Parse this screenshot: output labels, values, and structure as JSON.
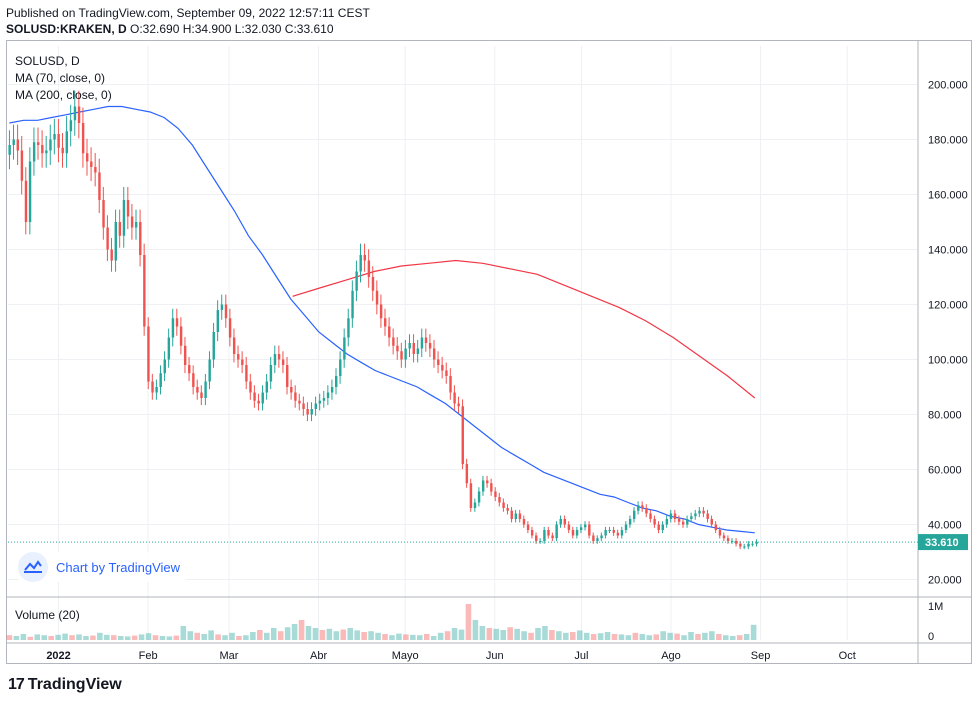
{
  "header": {
    "published": "Published on TradingView.com, September 09, 2022 12:57:11 CEST",
    "symbol": "SOLUSD:KRAKEN, D",
    "ohlc": "O:32.690 H:34.900 L:32.030 C:33.610"
  },
  "legend": {
    "symbol": "SOLUSD, D",
    "ma70": "MA (70, close, 0)",
    "ma200": "MA (200, close, 0)"
  },
  "volume_label": "Volume (20)",
  "attribution": "Chart by TradingView",
  "footer_brand": "TradingView",
  "last_price_label": "33.610",
  "colors": {
    "up": "#26a69a",
    "down": "#ef5350",
    "ma70": "#2962ff",
    "ma200": "#f23645",
    "grid": "#eef0f3",
    "lastline": "#26a69a"
  },
  "icons": {
    "attribution": "tradingview-cloud-icon",
    "brand": "tradingview-logo-icon"
  },
  "chart_data": {
    "type": "candlestick",
    "y_ticks": [
      "200.000",
      "180.000",
      "160.000",
      "140.000",
      "120.000",
      "100.000",
      "80.000",
      "60.000",
      "40.000",
      "20.000"
    ],
    "y_tick_values": [
      200,
      180,
      160,
      140,
      120,
      100,
      80,
      60,
      40,
      20
    ],
    "ylim": [
      14,
      214
    ],
    "volume_ticks": [
      "1M",
      "0"
    ],
    "volume_max": 1200000,
    "x_tick_labels": [
      "2022",
      "Feb",
      "Mar",
      "Abr",
      "Mayo",
      "Jun",
      "Jul",
      "Ago",
      "Sep",
      "Oct"
    ],
    "x_tick_index": [
      17,
      48,
      76,
      107,
      137,
      168,
      198,
      229,
      260,
      290
    ],
    "total_slots": 315,
    "last_price": 33.61,
    "close_series": [
      178,
      180,
      176,
      165,
      150,
      172,
      179,
      178,
      175,
      176,
      180,
      182,
      177,
      175,
      183,
      187,
      192,
      186,
      175,
      172,
      170,
      168,
      158,
      148,
      140,
      136,
      150,
      145,
      158,
      152,
      148,
      150,
      138,
      112,
      92,
      88,
      90,
      95,
      100,
      108,
      115,
      112,
      105,
      98,
      95,
      90,
      88,
      86,
      92,
      100,
      110,
      118,
      120,
      115,
      108,
      102,
      100,
      98,
      92,
      88,
      85,
      84,
      88,
      92,
      98,
      102,
      100,
      98,
      90,
      88,
      85,
      84,
      82,
      80,
      82,
      84,
      85,
      86,
      88,
      90,
      94,
      100,
      108,
      115,
      125,
      132,
      138,
      136,
      130,
      125,
      120,
      115,
      112,
      108,
      105,
      103,
      100,
      104,
      106,
      102,
      104,
      108,
      106,
      104,
      100,
      98,
      96,
      94,
      88,
      84,
      83,
      62,
      55,
      46,
      48,
      52,
      56,
      55,
      52,
      50,
      48,
      46,
      45,
      42,
      44,
      42,
      40,
      38,
      36,
      34,
      34,
      38,
      36,
      35,
      40,
      42,
      40,
      38,
      36,
      38,
      39,
      40,
      36,
      34,
      35,
      36,
      38,
      38,
      37,
      36,
      38,
      40,
      42,
      45,
      47,
      46,
      44,
      42,
      40,
      38,
      40,
      42,
      44,
      42,
      41,
      40,
      42,
      43,
      44,
      45,
      44,
      42,
      40,
      38,
      36,
      35,
      34,
      34,
      33,
      32,
      32,
      33,
      33,
      33.6
    ],
    "ma70_series": [
      186,
      187,
      187,
      188,
      189,
      190,
      191,
      192,
      192,
      191,
      190,
      188,
      184,
      178,
      170,
      162,
      154,
      145,
      138,
      130,
      122,
      116,
      110,
      106,
      102,
      99,
      96,
      94,
      92,
      90,
      87,
      84,
      80,
      76,
      72,
      68,
      65,
      62,
      59,
      57,
      55,
      53,
      51,
      50,
      48,
      46,
      45,
      43,
      42,
      40,
      39,
      38,
      37.5,
      37
    ],
    "ma200_series": [
      123,
      126,
      129,
      132,
      134,
      135,
      136,
      135,
      133,
      131,
      127,
      123,
      119,
      114,
      108,
      101,
      94,
      86
    ],
    "volume_series": [
      0.12,
      0.1,
      0.15,
      0.08,
      0.14,
      0.12,
      0.1,
      0.13,
      0.16,
      0.12,
      0.14,
      0.1,
      0.11,
      0.18,
      0.13,
      0.12,
      0.1,
      0.09,
      0.11,
      0.14,
      0.17,
      0.12,
      0.1,
      0.09,
      0.11,
      0.35,
      0.22,
      0.18,
      0.15,
      0.24,
      0.14,
      0.12,
      0.18,
      0.1,
      0.12,
      0.2,
      0.25,
      0.18,
      0.3,
      0.22,
      0.32,
      0.4,
      0.5,
      0.35,
      0.3,
      0.25,
      0.28,
      0.22,
      0.26,
      0.3,
      0.24,
      0.2,
      0.22,
      0.18,
      0.15,
      0.12,
      0.16,
      0.14,
      0.13,
      0.12,
      0.15,
      0.1,
      0.18,
      0.22,
      0.3,
      0.26,
      0.9,
      0.5,
      0.35,
      0.3,
      0.28,
      0.25,
      0.32,
      0.28,
      0.22,
      0.18,
      0.3,
      0.35,
      0.25,
      0.22,
      0.18,
      0.2,
      0.24,
      0.18,
      0.15,
      0.17,
      0.2,
      0.15,
      0.14,
      0.12,
      0.18,
      0.15,
      0.12,
      0.14,
      0.22,
      0.18,
      0.16,
      0.12,
      0.2,
      0.15,
      0.18,
      0.22,
      0.15,
      0.12,
      0.1,
      0.12,
      0.15,
      0.38
    ]
  }
}
